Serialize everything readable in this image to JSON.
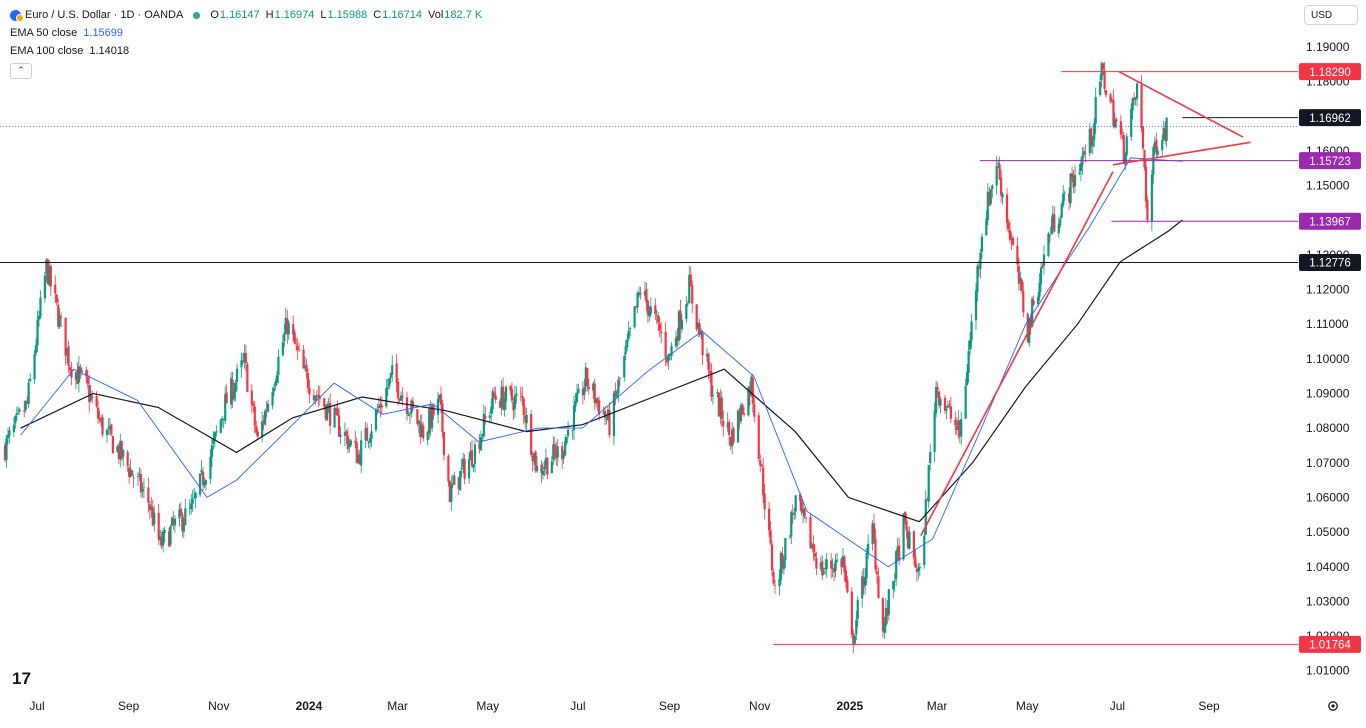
{
  "header": {
    "symbol_title": "Euro / U.S. Dollar · 1D · OANDA",
    "ohlc": [
      {
        "key": "O",
        "value": "1.16147"
      },
      {
        "key": "H",
        "value": "1.16974"
      },
      {
        "key": "L",
        "value": "1.15988"
      },
      {
        "key": "C",
        "value": "1.16714"
      },
      {
        "key": "Vol",
        "value": "182.7 K"
      }
    ],
    "indicators": [
      {
        "label": "EMA 50 close",
        "value": "1.15699",
        "color": "#2962ff"
      },
      {
        "label": "EMA 100 close",
        "value": "1.14018",
        "color": "#131722"
      }
    ],
    "collapse_icon": "chevron-up-icon"
  },
  "currency": {
    "label": "USD"
  },
  "logo_text": "17",
  "settings_icon": "gear-icon",
  "colors": {
    "up": "#089981",
    "down": "#f23645",
    "ema50": "#2962ff",
    "ema100": "#131722",
    "pattern": "#f23645",
    "support": "#9c27b0",
    "last_price": "#2962ff"
  },
  "chart_data": {
    "type": "candlestick",
    "y_axis": {
      "ticks": [
        "1.19000",
        "1.18000",
        "1.17000",
        "1.16000",
        "1.15000",
        "1.14000",
        "1.13000",
        "1.12000",
        "1.11000",
        "1.10000",
        "1.09000",
        "1.08000",
        "1.07000",
        "1.06000",
        "1.05000",
        "1.04000",
        "1.03000",
        "1.02000",
        "1.01000"
      ]
    },
    "x_axis": {
      "ticks": [
        {
          "label": "Jul",
          "date": "2023-07-01"
        },
        {
          "label": "Sep",
          "date": "2023-09-01"
        },
        {
          "label": "Nov",
          "date": "2023-11-01"
        },
        {
          "label": "2024",
          "date": "2024-01-01",
          "bold": true
        },
        {
          "label": "Mar",
          "date": "2024-03-01"
        },
        {
          "label": "May",
          "date": "2024-05-01"
        },
        {
          "label": "Jul",
          "date": "2024-07-01"
        },
        {
          "label": "Sep",
          "date": "2024-09-01"
        },
        {
          "label": "Nov",
          "date": "2024-11-01"
        },
        {
          "label": "2025",
          "date": "2025-01-01",
          "bold": true
        },
        {
          "label": "Mar",
          "date": "2025-03-01"
        },
        {
          "label": "May",
          "date": "2025-05-01"
        },
        {
          "label": "Jul",
          "date": "2025-07-01"
        },
        {
          "label": "Sep",
          "date": "2025-09-01"
        }
      ]
    },
    "price_path": [
      [
        "2023-06-20",
        1.0745
      ],
      [
        "2023-07-05",
        1.087
      ],
      [
        "2023-07-18",
        1.1265
      ],
      [
        "2023-08-03",
        1.0985
      ],
      [
        "2023-08-14",
        1.092
      ],
      [
        "2023-08-24",
        1.081
      ],
      [
        "2023-09-07",
        1.072
      ],
      [
        "2023-09-25",
        1.059
      ],
      [
        "2023-10-03",
        1.046
      ],
      [
        "2023-10-13",
        1.052
      ],
      [
        "2023-10-24",
        1.056
      ],
      [
        "2023-11-06",
        1.072
      ],
      [
        "2023-11-16",
        1.087
      ],
      [
        "2023-11-29",
        1.099
      ],
      [
        "2023-12-08",
        1.076
      ],
      [
        "2023-12-28",
        1.11
      ],
      [
        "2024-01-09",
        1.095
      ],
      [
        "2024-01-25",
        1.085
      ],
      [
        "2024-02-14",
        1.072
      ],
      [
        "2024-03-08",
        1.095
      ],
      [
        "2024-03-29",
        1.079
      ],
      [
        "2024-04-09",
        1.087
      ],
      [
        "2024-04-16",
        1.061
      ],
      [
        "2024-05-03",
        1.074
      ],
      [
        "2024-05-16",
        1.089
      ],
      [
        "2024-06-04",
        1.088
      ],
      [
        "2024-06-14",
        1.068
      ],
      [
        "2024-07-01",
        1.074
      ],
      [
        "2024-07-17",
        1.094
      ],
      [
        "2024-08-02",
        1.081
      ],
      [
        "2024-08-23",
        1.12
      ],
      [
        "2024-09-05",
        1.108
      ],
      [
        "2024-09-11",
        1.1
      ],
      [
        "2024-09-25",
        1.121
      ],
      [
        "2024-10-10",
        1.092
      ],
      [
        "2024-10-23",
        1.077
      ],
      [
        "2024-11-06",
        1.093
      ],
      [
        "2024-11-22",
        1.033
      ],
      [
        "2024-12-06",
        1.059
      ],
      [
        "2024-12-23",
        1.039
      ],
      [
        "2025-01-07",
        1.042
      ],
      [
        "2025-01-13",
        1.018
      ],
      [
        "2025-01-27",
        1.051
      ],
      [
        "2025-02-03",
        1.021
      ],
      [
        "2025-02-17",
        1.052
      ],
      [
        "2025-02-28",
        1.037
      ],
      [
        "2025-03-11",
        1.092
      ],
      [
        "2025-03-27",
        1.078
      ],
      [
        "2025-04-11",
        1.137
      ],
      [
        "2025-04-21",
        1.157
      ],
      [
        "2025-05-12",
        1.108
      ],
      [
        "2025-05-27",
        1.137
      ],
      [
        "2025-06-05",
        1.145
      ],
      [
        "2025-06-24",
        1.164
      ],
      [
        "2025-07-01",
        1.1829
      ],
      [
        "2025-07-16",
        1.16
      ],
      [
        "2025-07-25",
        1.178
      ],
      [
        "2025-07-30",
        1.156
      ],
      [
        "2025-08-01",
        1.1397
      ],
      [
        "2025-08-06",
        1.162
      ],
      [
        "2025-08-14",
        1.1671
      ]
    ],
    "ema50_path": [
      [
        "2023-06-20",
        1.078
      ],
      [
        "2023-07-26",
        1.097
      ],
      [
        "2023-09-07",
        1.088
      ],
      [
        "2023-10-24",
        1.06
      ],
      [
        "2023-11-13",
        1.065
      ],
      [
        "2023-12-14",
        1.078
      ],
      [
        "2024-01-18",
        1.093
      ],
      [
        "2024-02-20",
        1.084
      ],
      [
        "2024-03-25",
        1.087
      ],
      [
        "2024-04-25",
        1.076
      ],
      [
        "2024-06-04",
        1.08
      ],
      [
        "2024-07-04",
        1.08
      ],
      [
        "2024-08-16",
        1.096
      ],
      [
        "2024-09-23",
        1.108
      ],
      [
        "2024-10-28",
        1.095
      ],
      [
        "2024-12-03",
        1.056
      ],
      [
        "2025-01-27",
        1.04
      ],
      [
        "2025-02-26",
        1.048
      ],
      [
        "2025-03-31",
        1.08
      ],
      [
        "2025-04-30",
        1.11
      ],
      [
        "2025-06-12",
        1.138
      ],
      [
        "2025-07-10",
        1.158
      ],
      [
        "2025-08-14",
        1.157
      ]
    ],
    "ema100_path": [
      [
        "2023-06-20",
        1.08
      ],
      [
        "2023-08-08",
        1.09
      ],
      [
        "2023-09-21",
        1.086
      ],
      [
        "2023-11-13",
        1.073
      ],
      [
        "2023-12-21",
        1.083
      ],
      [
        "2024-02-06",
        1.089
      ],
      [
        "2024-04-03",
        1.085
      ],
      [
        "2024-05-27",
        1.079
      ],
      [
        "2024-07-04",
        1.081
      ],
      [
        "2024-08-27",
        1.09
      ],
      [
        "2024-10-08",
        1.097
      ],
      [
        "2024-11-25",
        1.079
      ],
      [
        "2024-12-31",
        1.06
      ],
      [
        "2025-02-17",
        1.053
      ],
      [
        "2025-03-25",
        1.07
      ],
      [
        "2025-04-30",
        1.092
      ],
      [
        "2025-06-04",
        1.11
      ],
      [
        "2025-07-03",
        1.128
      ],
      [
        "2025-08-05",
        1.137
      ],
      [
        "2025-08-14",
        1.1401
      ]
    ],
    "horizontal_levels": [
      {
        "price": 1.1829,
        "label": "1.18290",
        "color": "#f23645",
        "from": "2025-05-24"
      },
      {
        "price": 1.1696,
        "label": "1.16962",
        "color": "#131722",
        "from": "2025-08-14"
      },
      {
        "price": 1.1572,
        "label": "1.15723",
        "color": "#9c27b0",
        "from": "2025-03-30"
      },
      {
        "price": 1.1397,
        "label": "1.13967",
        "color": "#9c27b0",
        "from": "2025-06-27"
      },
      {
        "price": 1.1278,
        "label": "1.12776",
        "color": "#131722",
        "from": "2023-06-20"
      },
      {
        "price": 1.0176,
        "label": "1.01764",
        "color": "#f23645",
        "from": "2024-11-10"
      }
    ],
    "trend_lines": [
      {
        "from": [
          "2025-02-18",
          1.049
        ],
        "to": [
          "2025-06-28",
          1.154
        ]
      },
      {
        "from": [
          "2025-06-28",
          1.156
        ],
        "to": [
          "2025-09-29",
          1.1625
        ]
      },
      {
        "from": [
          "2025-07-02",
          1.1829
        ],
        "to": [
          "2025-09-24",
          1.164
        ]
      }
    ],
    "last_price": 1.1671
  }
}
